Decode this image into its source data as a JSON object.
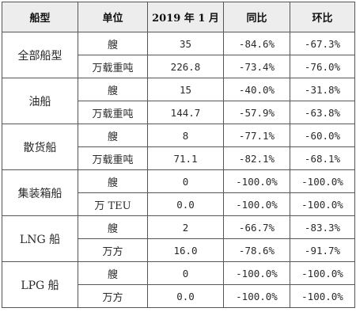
{
  "header": {
    "ship_type": "船型",
    "unit": "单位",
    "period": "2019 年 1 月",
    "yoy": "同比",
    "mom": "环比"
  },
  "groups": [
    {
      "ship_type": "全部船型",
      "rows": [
        {
          "unit": "艘",
          "value": "35",
          "yoy": "-84.6%",
          "mom": "-67.3%"
        },
        {
          "unit": "万载重吨",
          "value": "226.8",
          "yoy": "-73.4%",
          "mom": "-76.0%"
        }
      ]
    },
    {
      "ship_type": "油船",
      "rows": [
        {
          "unit": "艘",
          "value": "15",
          "yoy": "-40.0%",
          "mom": "-31.8%"
        },
        {
          "unit": "万载重吨",
          "value": "144.7",
          "yoy": "-57.9%",
          "mom": "-63.8%"
        }
      ]
    },
    {
      "ship_type": "散货船",
      "rows": [
        {
          "unit": "艘",
          "value": "8",
          "yoy": "-77.1%",
          "mom": "-60.0%"
        },
        {
          "unit": "万载重吨",
          "value": "71.1",
          "yoy": "-82.1%",
          "mom": "-68.1%"
        }
      ]
    },
    {
      "ship_type": "集装箱船",
      "rows": [
        {
          "unit": "艘",
          "value": "0",
          "yoy": "-100.0%",
          "mom": "-100.0%"
        },
        {
          "unit": "万 TEU",
          "value": "0.0",
          "yoy": "-100.0%",
          "mom": "-100.0%"
        }
      ]
    },
    {
      "ship_type": "LNG 船",
      "rows": [
        {
          "unit": "艘",
          "value": "2",
          "yoy": "-66.7%",
          "mom": "-83.3%"
        },
        {
          "unit": "万方",
          "value": "16.0",
          "yoy": "-78.6%",
          "mom": "-91.7%"
        }
      ]
    },
    {
      "ship_type": "LPG 船",
      "rows": [
        {
          "unit": "艘",
          "value": "0",
          "yoy": "-100.0%",
          "mom": "-100.0%"
        },
        {
          "unit": "万方",
          "value": "0.0",
          "yoy": "-100.0%",
          "mom": "-100.0%"
        }
      ]
    }
  ],
  "colors": {
    "header_bg": "#ededed",
    "border": "#555555",
    "text": "#2a2a2a"
  }
}
